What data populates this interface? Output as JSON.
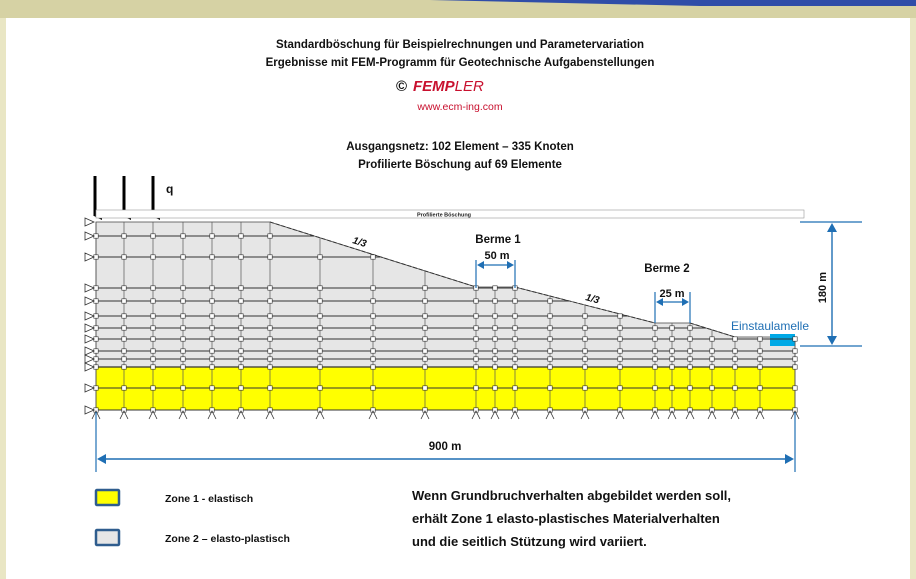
{
  "header": {
    "line1": "Standardböschung für Beispielrechnungen und Parametervariation",
    "line2": "Ergebnisse mit FEM-Programm für Geotechnische Aufgabenstellungen",
    "copyright_symbol": "©",
    "brand_fem": "FEMP",
    "brand_ler": "LER",
    "url": "www.ecm-ing.com",
    "mesh_line1": "Ausgangsnetz: 102 Element – 335 Knoten",
    "mesh_line2": "Profilierte Böschung auf 69 Elemente"
  },
  "diagram": {
    "load_label": "q",
    "strip_label": "Profilierte Böschung",
    "slope_label_1": "1/3",
    "slope_label_2": "1/3",
    "berme1_label": "Berme 1",
    "berme1_width": "50 m",
    "berme2_label": "Berme 2",
    "berme2_width": "25 m",
    "einstau_label": "Einstaulamelle",
    "height_label": "180 m",
    "width_label": "900 m"
  },
  "legend": {
    "zone1": "Zone 1 - elastisch",
    "zone2": "Zone 2 – elasto-plastisch"
  },
  "note": {
    "line1": "Wenn Grundbruchverhalten abgebildet werden soll,",
    "line2": "erhält Zone 1 elasto-plastisches Materialverhalten",
    "line3": "und die seitlich Stützung wird variiert."
  },
  "colors": {
    "page_background": "#e9e6c4",
    "slide_background": "#ffffff",
    "top_band": "#d6d2a4",
    "brand_red": "#c8102e",
    "url_red": "#c8102e",
    "zone1_yellow": "#ffff00",
    "zone2_grey": "#e6e6e6",
    "water_blue": "#00a9e6",
    "dimension_blue": "#1f6fb4",
    "legend_border": "#2f5d8e"
  }
}
